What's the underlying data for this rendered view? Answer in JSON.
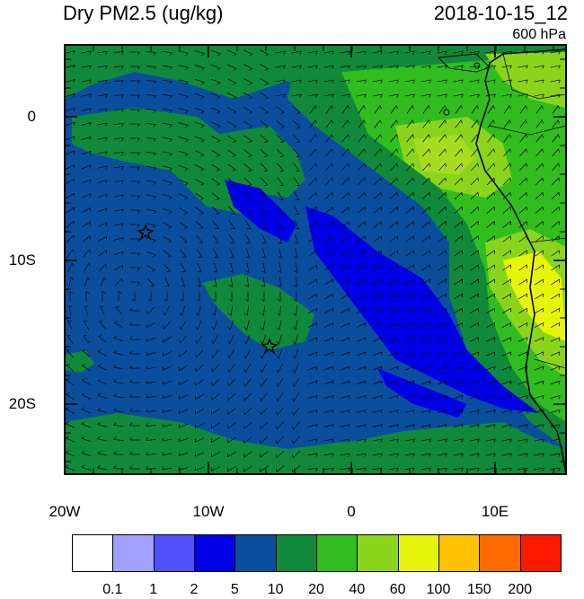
{
  "header": {
    "field_title": "Dry PM2.5 (ug/kg)",
    "timestamp": "2018-10-15_12",
    "level": "600 hPa"
  },
  "axes": {
    "y_ticks": [
      "0",
      "10S",
      "20S"
    ],
    "x_ticks": [
      "20W",
      "10W",
      "0",
      "10E"
    ]
  },
  "colorbar": {
    "colors": [
      "#ffffff",
      "#a0a0ff",
      "#5050ff",
      "#0000e6",
      "#0a4f9e",
      "#108a3a",
      "#31bd1e",
      "#8ad51c",
      "#e6f50a",
      "#ffc200",
      "#ff6a00",
      "#ff1a00"
    ],
    "labels": [
      "0.1",
      "1",
      "2",
      "5",
      "10",
      "20",
      "40",
      "60",
      "100",
      "150",
      "200"
    ]
  },
  "markers": {
    "station_icon": "star-icon"
  }
}
